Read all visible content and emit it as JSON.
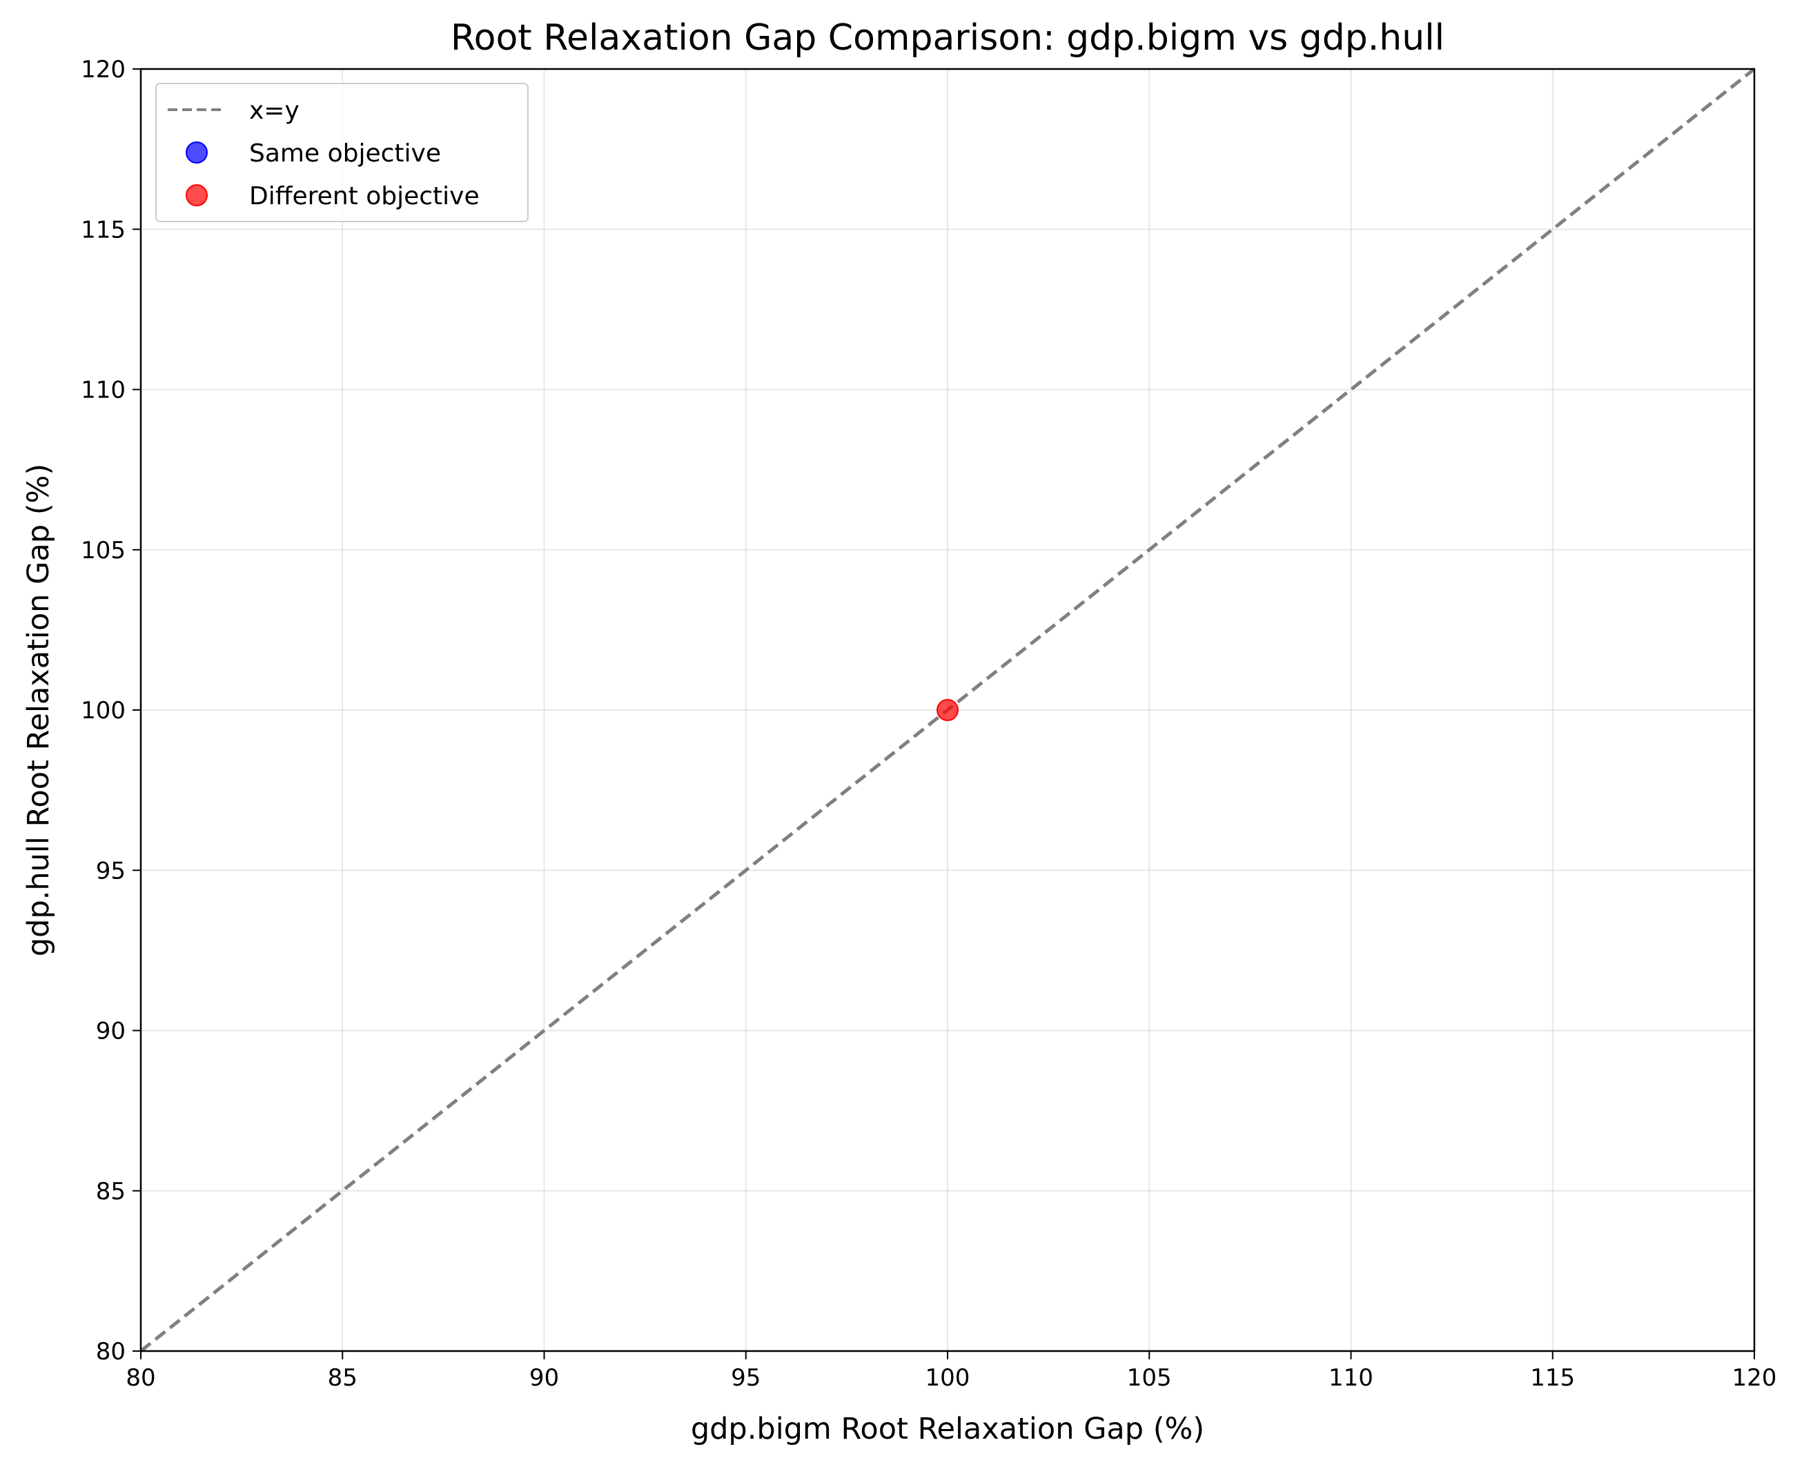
{
  "chart_data": {
    "type": "scatter",
    "title": "Root Relaxation Gap Comparison: gdp.bigm vs gdp.hull",
    "xlabel": "gdp.bigm Root Relaxation Gap (%)",
    "ylabel": "gdp.hull Root Relaxation Gap (%)",
    "xlim": [
      80,
      120
    ],
    "ylim": [
      80,
      120
    ],
    "xticks": [
      "80",
      "85",
      "90",
      "95",
      "100",
      "105",
      "110",
      "115",
      "120"
    ],
    "yticks": [
      "80",
      "85",
      "90",
      "95",
      "100",
      "105",
      "110",
      "115",
      "120"
    ],
    "grid": true,
    "legend_position": "top-left",
    "reference_line": {
      "name": "x=y",
      "points": [
        [
          80,
          80
        ],
        [
          120,
          120
        ]
      ],
      "color": "#808080",
      "style": "dashed"
    },
    "series": [
      {
        "name": "Same objective",
        "color": "#0000ff",
        "points": []
      },
      {
        "name": "Different objective",
        "color": "#ff0000",
        "points": [
          [
            100,
            100
          ]
        ]
      }
    ]
  }
}
